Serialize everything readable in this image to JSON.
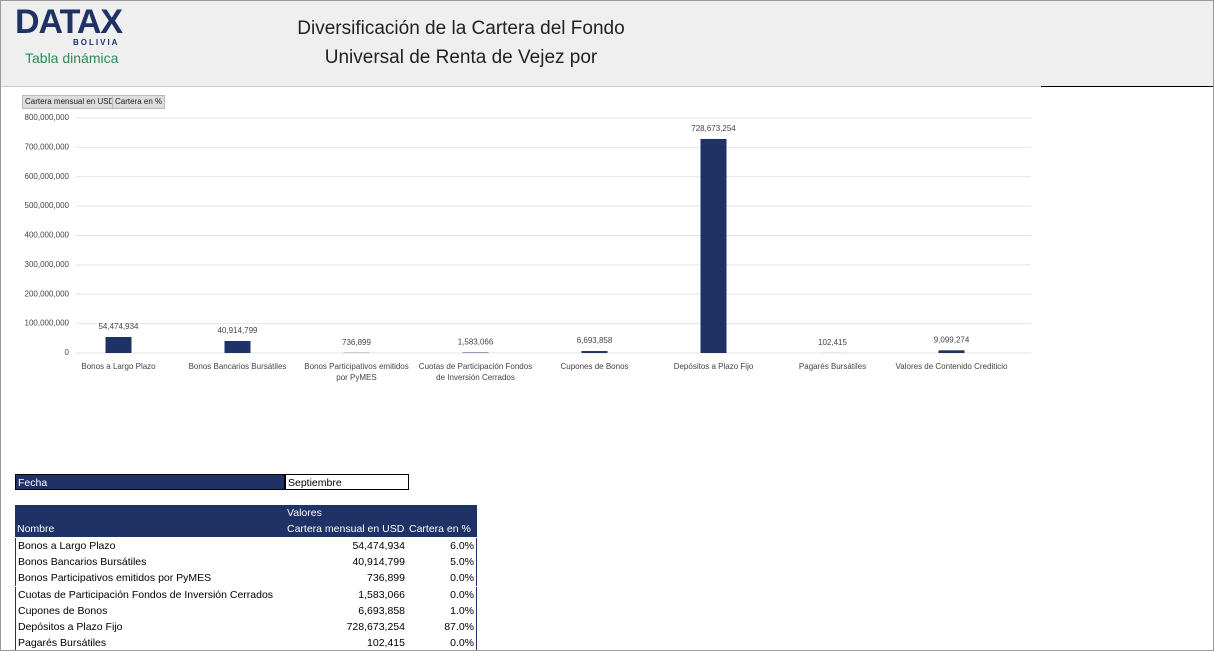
{
  "header": {
    "logo": "DATAX",
    "logo_sub": "BOLIVIA",
    "subtitle": "Tabla dinámica",
    "title_line1": "Diversificación de la Cartera del Fondo",
    "title_line2": "Universal de Renta de Vejez por"
  },
  "buttons": [
    "Cartera mensual en USD",
    "Cartera en %"
  ],
  "chart_data": {
    "type": "bar",
    "categories": [
      "Bonos a Largo Plazo",
      "Bonos Bancarios Bursátiles",
      "Bonos Participativos emitidos por PyMES",
      "Cuotas de Participación Fondos de Inversión Cerrados",
      "Cupones de Bonos",
      "Depósitos a Plazo Fijo",
      "Pagarés Bursátiles",
      "Valores de Contenido Crediticio"
    ],
    "values": [
      54474934,
      40914799,
      736899,
      1583066,
      6693858,
      728673254,
      102415,
      9099274
    ],
    "value_labels": [
      "54,474,934",
      "40,914,799",
      "736,899",
      "1,583,066",
      "6,693,858",
      "728,673,254",
      "102,415",
      "9,099,274"
    ],
    "color": "#1f3265",
    "ylim": [
      0,
      800000000
    ],
    "yticks": [
      0,
      {
        "value": 100000000,
        "label": "100,000,000"
      },
      {
        "value": 200000000,
        "label": "200,000,000"
      },
      {
        "value": 300000000,
        "label": "300,000,000"
      },
      {
        "value": 400000000,
        "label": "400,000,000"
      },
      {
        "value": 500000000,
        "label": "500,000,000"
      },
      {
        "value": 600000000,
        "label": "600,000,000"
      },
      {
        "value": 700000000,
        "label": "700,000,000"
      },
      {
        "value": 800000000,
        "label": "800,000,000"
      }
    ],
    "grid": true
  },
  "filter": {
    "label": "Fecha",
    "value": "Septiembre"
  },
  "table": {
    "values_header": "Valores",
    "columns": [
      "Nombre",
      "Cartera mensual en USD",
      "Cartera en %"
    ],
    "rows": [
      [
        "Bonos a Largo Plazo",
        "54,474,934",
        "6.0%"
      ],
      [
        "Bonos Bancarios Bursátiles",
        "40,914,799",
        "5.0%"
      ],
      [
        "Bonos Participativos emitidos por PyMES",
        "736,899",
        "0.0%"
      ],
      [
        "Cuotas de Participación Fondos de Inversión Cerrados",
        "1,583,066",
        "0.0%"
      ],
      [
        "Cupones de Bonos",
        "6,693,858",
        "1.0%"
      ],
      [
        "Depósitos a Plazo Fijo",
        "728,673,254",
        "87.0%"
      ],
      [
        "Pagarés Bursátiles",
        "102,415",
        "0.0%"
      ]
    ]
  }
}
